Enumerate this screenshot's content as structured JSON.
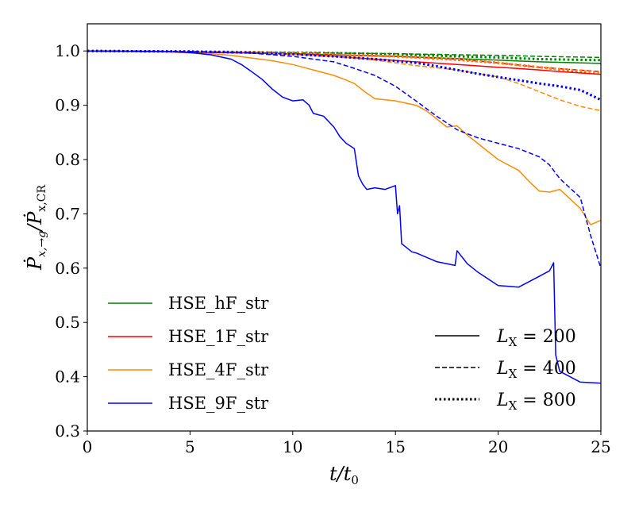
{
  "chart_data": {
    "type": "line",
    "xlabel_main": "t/t",
    "xlabel_sub": "0",
    "ylabel_main": "Ṗ",
    "ylabel_sub1": "x,→g",
    "ylabel_mid": "/Ṗ",
    "ylabel_sub2": "x,CR",
    "xlim": [
      0,
      25
    ],
    "ylim": [
      0.3,
      1.05
    ],
    "xticks": [
      "0",
      "5",
      "10",
      "15",
      "20",
      "25"
    ],
    "yticks": [
      "0.3",
      "0.4",
      "0.5",
      "0.6",
      "0.7",
      "0.8",
      "0.9",
      "1.0"
    ],
    "grid": false,
    "colors": {
      "HSE_hF_str": "#008000",
      "HSE_1F_str": "#ff0000",
      "HSE_4F_str": "#ff8c00",
      "HSE_9F_str": "#0000ff"
    },
    "legend_models": [
      {
        "label": "HSE_hF_str",
        "color": "#008000"
      },
      {
        "label": "HSE_1F_str",
        "color": "#ff0000"
      },
      {
        "label": "HSE_4F_str",
        "color": "#ff8c00"
      },
      {
        "label": "HSE_9F_str",
        "color": "#0000ff"
      }
    ],
    "legend_styles": [
      {
        "label_main": "L",
        "label_sub": "X",
        "label_eq": " = 200",
        "dash": "solid"
      },
      {
        "label_main": "L",
        "label_sub": "X",
        "label_eq": " = 400",
        "dash": "dashed"
      },
      {
        "label_main": "L",
        "label_sub": "X",
        "label_eq": " = 800",
        "dash": "dotted"
      }
    ],
    "series": [
      {
        "name": "HSE_hF_str",
        "Lx": 200,
        "x": [
          0,
          5,
          8,
          10,
          12,
          15,
          18,
          20,
          22,
          25
        ],
        "y": [
          1.0,
          0.998,
          0.997,
          0.995,
          0.993,
          0.99,
          0.986,
          0.983,
          0.98,
          0.977
        ]
      },
      {
        "name": "HSE_hF_str",
        "Lx": 400,
        "x": [
          0,
          5,
          8,
          10,
          12,
          15,
          18,
          20,
          22,
          25
        ],
        "y": [
          1.0,
          0.999,
          0.998,
          0.997,
          0.996,
          0.995,
          0.993,
          0.992,
          0.99,
          0.988
        ]
      },
      {
        "name": "HSE_hF_str",
        "Lx": 800,
        "x": [
          0,
          5,
          8,
          10,
          12,
          15,
          18,
          20,
          22,
          25
        ],
        "y": [
          1.0,
          0.999,
          0.998,
          0.997,
          0.996,
          0.994,
          0.99,
          0.988,
          0.985,
          0.983
        ]
      },
      {
        "name": "HSE_1F_str",
        "Lx": 200,
        "x": [
          0,
          5,
          8,
          10,
          12,
          14,
          16,
          18,
          20,
          22,
          23,
          25
        ],
        "y": [
          1.0,
          0.998,
          0.996,
          0.994,
          0.99,
          0.985,
          0.98,
          0.975,
          0.97,
          0.965,
          0.962,
          0.957
        ]
      },
      {
        "name": "HSE_1F_str",
        "Lx": 400,
        "x": [
          0,
          5,
          8,
          10,
          12,
          15,
          18,
          20,
          22,
          25
        ],
        "y": [
          1.0,
          0.999,
          0.997,
          0.995,
          0.993,
          0.99,
          0.985,
          0.978,
          0.97,
          0.962
        ]
      },
      {
        "name": "HSE_1F_str",
        "Lx": 800,
        "x": [
          0,
          5,
          8,
          10,
          12,
          15,
          18,
          20,
          22,
          25
        ],
        "y": [
          1.0,
          0.999,
          0.997,
          0.996,
          0.994,
          0.99,
          0.984,
          0.978,
          0.97,
          0.958
        ]
      },
      {
        "name": "HSE_4F_str",
        "Lx": 200,
        "x": [
          0,
          4,
          6,
          7,
          8,
          9,
          10,
          11,
          12,
          12.5,
          13,
          13.5,
          14,
          15,
          16,
          16.5,
          17,
          17.5,
          18,
          18.5,
          19,
          20,
          21,
          21.5,
          22,
          22.5,
          23,
          24,
          24.5,
          25
        ],
        "y": [
          1.0,
          0.998,
          0.995,
          0.992,
          0.987,
          0.982,
          0.975,
          0.965,
          0.955,
          0.948,
          0.94,
          0.925,
          0.912,
          0.908,
          0.9,
          0.89,
          0.875,
          0.86,
          0.862,
          0.845,
          0.83,
          0.8,
          0.78,
          0.76,
          0.742,
          0.74,
          0.745,
          0.71,
          0.68,
          0.688
        ]
      },
      {
        "name": "HSE_4F_str",
        "Lx": 400,
        "x": [
          0,
          5,
          8,
          10,
          12,
          14,
          15,
          16,
          18,
          20,
          21,
          22,
          23,
          24,
          25
        ],
        "y": [
          1.0,
          0.999,
          0.997,
          0.994,
          0.99,
          0.983,
          0.978,
          0.973,
          0.965,
          0.952,
          0.94,
          0.925,
          0.91,
          0.898,
          0.89
        ]
      },
      {
        "name": "HSE_4F_str",
        "Lx": 800,
        "x": [
          0,
          5,
          8,
          10,
          12,
          15,
          18,
          20,
          22,
          25
        ],
        "y": [
          1.0,
          0.999,
          0.998,
          0.996,
          0.993,
          0.99,
          0.985,
          0.978,
          0.97,
          0.96
        ]
      },
      {
        "name": "HSE_9F_str",
        "Lx": 200,
        "x": [
          0,
          4,
          5,
          6,
          7,
          7.5,
          8,
          8.5,
          9,
          9.5,
          10,
          10.5,
          10.8,
          11,
          11.5,
          12,
          12.3,
          12.6,
          13,
          13.2,
          13.4,
          13.6,
          14,
          14.5,
          15,
          15.1,
          15.2,
          15.3,
          15.8,
          16,
          17,
          17.9,
          18,
          18.5,
          19,
          20,
          21,
          21.5,
          22,
          22.5,
          22.7,
          22.8,
          23,
          24,
          25
        ],
        "y": [
          1.0,
          0.999,
          0.997,
          0.993,
          0.985,
          0.975,
          0.962,
          0.948,
          0.93,
          0.915,
          0.908,
          0.91,
          0.9,
          0.885,
          0.88,
          0.86,
          0.842,
          0.83,
          0.82,
          0.77,
          0.755,
          0.745,
          0.748,
          0.745,
          0.752,
          0.7,
          0.715,
          0.645,
          0.63,
          0.628,
          0.612,
          0.605,
          0.632,
          0.608,
          0.593,
          0.568,
          0.565,
          0.575,
          0.585,
          0.595,
          0.61,
          0.44,
          0.41,
          0.39,
          0.388
        ]
      },
      {
        "name": "HSE_9F_str",
        "Lx": 400,
        "x": [
          0,
          5,
          8,
          10,
          12,
          13,
          14,
          15,
          16,
          17,
          18,
          19,
          20,
          21,
          22,
          22.5,
          23,
          24,
          24.5,
          25
        ],
        "y": [
          1.0,
          0.999,
          0.996,
          0.99,
          0.98,
          0.968,
          0.955,
          0.935,
          0.908,
          0.88,
          0.855,
          0.84,
          0.83,
          0.82,
          0.805,
          0.79,
          0.765,
          0.73,
          0.66,
          0.6
        ]
      },
      {
        "name": "HSE_9F_str",
        "Lx": 800,
        "x": [
          0,
          5,
          8,
          10,
          12,
          14,
          16,
          17,
          18,
          19,
          20,
          21,
          22,
          23,
          24,
          25
        ],
        "y": [
          1.0,
          0.999,
          0.997,
          0.994,
          0.99,
          0.985,
          0.978,
          0.972,
          0.965,
          0.958,
          0.952,
          0.946,
          0.94,
          0.935,
          0.928,
          0.91
        ]
      }
    ]
  }
}
